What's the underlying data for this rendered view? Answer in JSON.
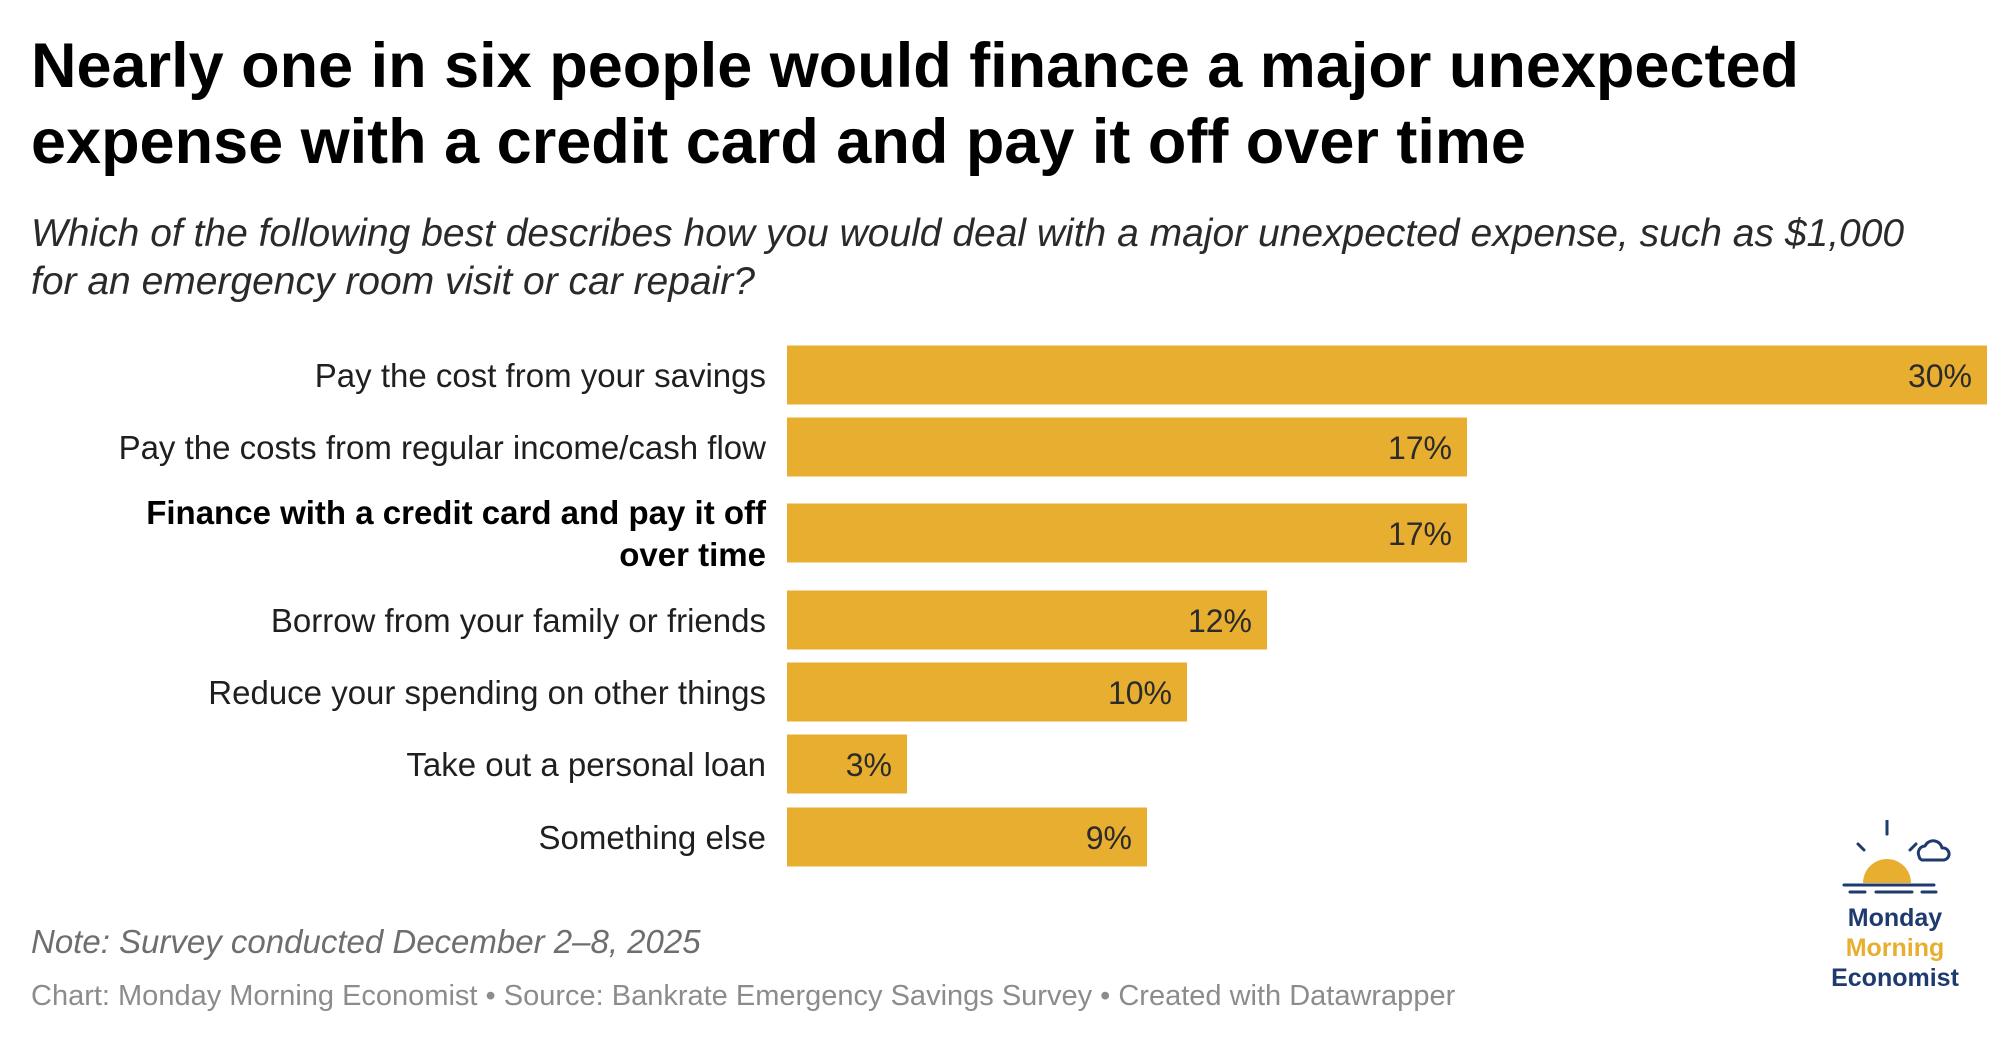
{
  "title": "Nearly one in six people would finance a major unexpected expense with a credit card and pay it off over time",
  "subtitle": "Which of the following best describes how you would deal with a major unexpected expense, such as $1,000 for an emergency room visit or car repair?",
  "note": "Note: Survey conducted December 2–8, 2025",
  "footer": "Chart: Monday Morning Economist • Source: Bankrate Emergency Savings Survey • Created with Datawrapper",
  "logo": {
    "line1": "Monday",
    "line2": "Morning",
    "line3": "Economist",
    "icon": "sunrise-cloud-icon"
  },
  "colors": {
    "bar": "#e8ae30",
    "logo_navy": "#1e3a6e",
    "logo_gold": "#e8ae30"
  },
  "chart_data": {
    "type": "bar",
    "orientation": "horizontal",
    "categories": [
      "Pay the cost from your savings",
      "Pay the costs from regular income/cash flow",
      "Finance with a credit card and pay it off over time",
      "Borrow from your family or friends",
      "Reduce your spending on other things",
      "Take out a personal loan",
      "Something else"
    ],
    "values": [
      30,
      17,
      17,
      12,
      10,
      3,
      9
    ],
    "value_labels": [
      "30%",
      "17%",
      "17%",
      "12%",
      "10%",
      "3%",
      "9%"
    ],
    "highlighted_category": "Finance with a credit card and pay it off over time",
    "xlim": [
      0,
      30
    ],
    "grid": false,
    "legend": "none"
  }
}
